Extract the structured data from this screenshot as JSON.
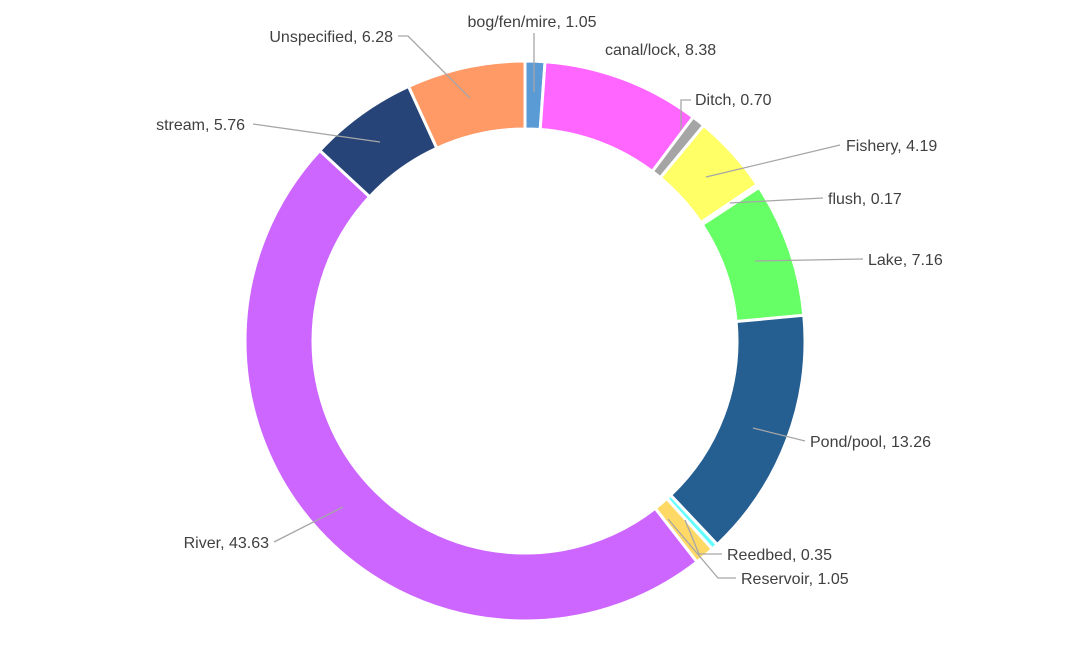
{
  "chart_data": {
    "type": "pie",
    "variant": "doughnut",
    "title": "",
    "slices": [
      {
        "label": "bog/fen/mire",
        "value": 1.05,
        "display": "bog/fen/mire, 1.05",
        "color": "#5b9bd5"
      },
      {
        "label": "canal/lock",
        "value": 8.38,
        "display": "canal/lock, 8.38",
        "color": "#ff66ff"
      },
      {
        "label": "Ditch",
        "value": 0.7,
        "display": "Ditch, 0.70",
        "color": "#a5a5a5"
      },
      {
        "label": "Fishery",
        "value": 4.19,
        "display": "Fishery, 4.19",
        "color": "#ffff66"
      },
      {
        "label": "flush",
        "value": 0.17,
        "display": "flush, 0.17",
        "color": "#c9f2c9"
      },
      {
        "label": "Lake",
        "value": 7.16,
        "display": "Lake, 7.16",
        "color": "#66ff66"
      },
      {
        "label": "Pond/pool",
        "value": 13.26,
        "display": "Pond/pool, 13.26",
        "color": "#255e91"
      },
      {
        "label": "Reedbed",
        "value": 0.35,
        "display": "Reedbed, 0.35",
        "color": "#66ffff"
      },
      {
        "label": "Reservoir",
        "value": 1.05,
        "display": "Reservoir, 1.05",
        "color": "#ffd966"
      },
      {
        "label": "River",
        "value": 43.63,
        "display": "River, 43.63",
        "color": "#cc66ff"
      },
      {
        "label": "stream",
        "value": 5.76,
        "display": "stream, 5.76",
        "color": "#264478"
      },
      {
        "label": "Unspecified",
        "value": 6.28,
        "display": "Unspecified, 6.28",
        "color": "#ff9966"
      }
    ],
    "legend": "none",
    "data_labels": "outside with leader lines"
  }
}
